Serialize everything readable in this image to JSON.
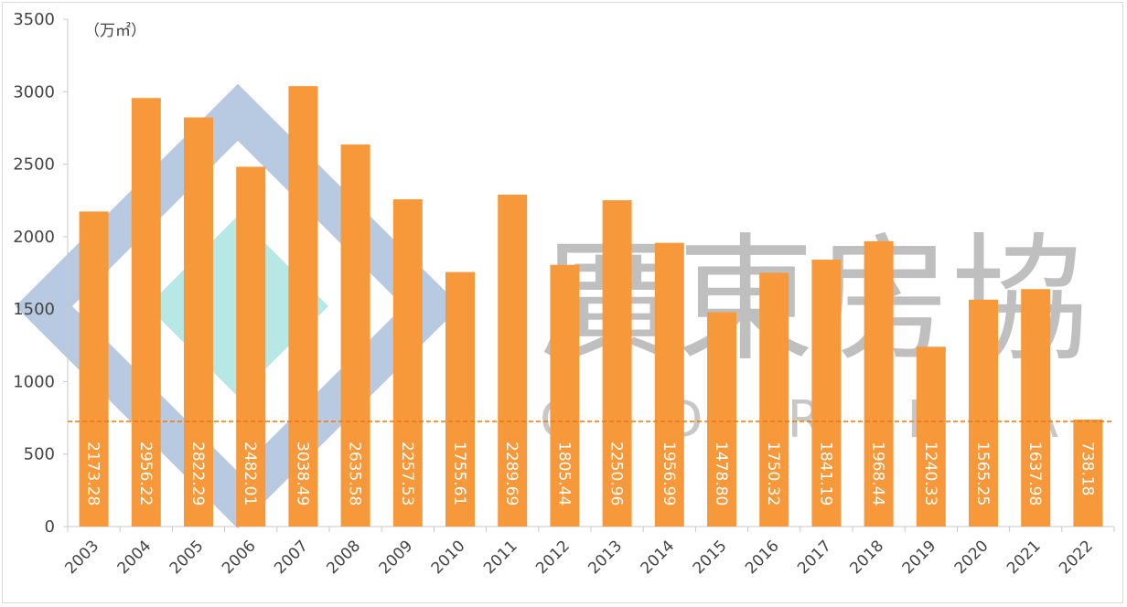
{
  "chart_data": {
    "type": "bar",
    "title": "",
    "unit_label": "（万㎡）",
    "xlabel": "",
    "ylabel": "",
    "ylim": [
      0,
      3500
    ],
    "yticks": [
      "0",
      "500",
      "1000",
      "1500",
      "2000",
      "2500",
      "3000",
      "3500"
    ],
    "grid": false,
    "categories": [
      "2003",
      "2004",
      "2005",
      "2006",
      "2007",
      "2008",
      "2009",
      "2010",
      "2011",
      "2012",
      "2013",
      "2014",
      "2015",
      "2016",
      "2017",
      "2018",
      "2019",
      "2020",
      "2021",
      "2022"
    ],
    "values": [
      2173.28,
      2956.22,
      2822.29,
      2482.01,
      3038.49,
      2635.58,
      2257.53,
      1755.61,
      2289.69,
      1805.44,
      2250.96,
      1956.99,
      1478.8,
      1750.32,
      1841.19,
      1968.44,
      1240.33,
      1565.25,
      1637.98,
      738.18
    ],
    "data_labels": [
      "2173.28",
      "2956.22",
      "2822.29",
      "2482.01",
      "3038.49",
      "2635.58",
      "2257.53",
      "1755.61",
      "2289.69",
      "1805.44",
      "2250.96",
      "1956.99",
      "1478.80",
      "1750.32",
      "1841.19",
      "1968.44",
      "1240.33",
      "1565.25",
      "1637.98",
      "738.18"
    ],
    "reference_line": {
      "value": 738.18,
      "style": "dashed",
      "color": "#e07b1a"
    },
    "bar_color": "#f7983a",
    "watermark": {
      "chinese": "廣東房協",
      "latin": "G D R E A"
    }
  }
}
